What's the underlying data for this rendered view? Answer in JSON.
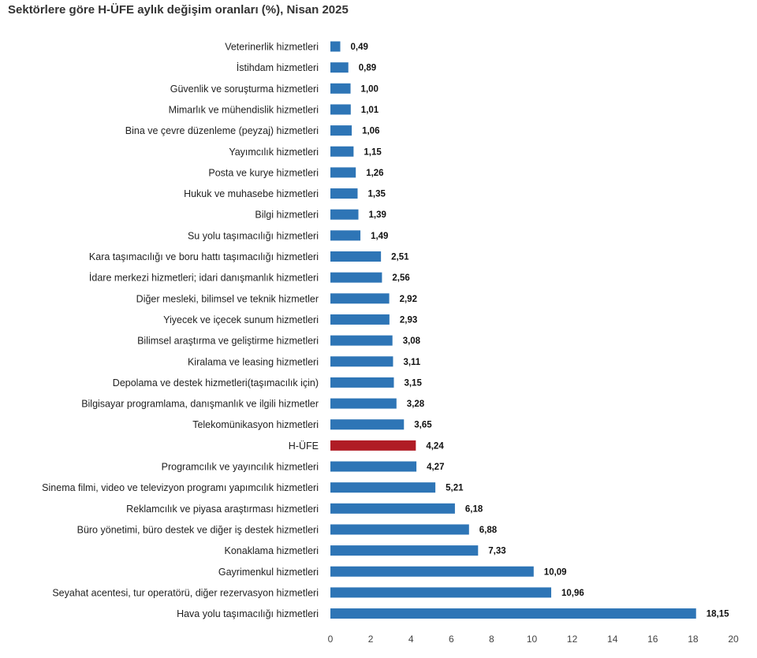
{
  "chart_data": {
    "type": "bar",
    "orientation": "horizontal",
    "title": "Sektörlere göre H-ÜFE aylık değişim oranları (%), Nisan 2025",
    "categories": [
      "Veterinerlik hizmetleri",
      "İstihdam hizmetleri",
      "Güvenlik ve soruşturma hizmetleri",
      "Mimarlık ve mühendislik hizmetleri",
      "Bina ve çevre düzenleme (peyzaj) hizmetleri",
      "Yayımcılık hizmetleri",
      "Posta ve kurye hizmetleri",
      "Hukuk ve muhasebe hizmetleri",
      "Bilgi hizmetleri",
      "Su yolu taşımacılığı hizmetleri",
      "Kara taşımacılığı ve boru hattı taşımacılığı hizmetleri",
      "İdare merkezi hizmetleri; idari danışmanlık hizmetleri",
      "Diğer mesleki, bilimsel ve teknik hizmetler",
      "Yiyecek ve içecek sunum hizmetleri",
      "Bilimsel araştırma ve geliştirme hizmetleri",
      "Kiralama ve leasing hizmetleri",
      "Depolama ve destek hizmetleri(taşımacılık için)",
      "Bilgisayar programlama, danışmanlık ve ilgili hizmetler",
      "Telekomünikasyon hizmetleri",
      "H-ÜFE",
      "Programcılık ve yayıncılık hizmetleri",
      "Sinema filmi, video ve televizyon programı yapımcılık hizmetleri",
      "Reklamcılık ve piyasa araştırması hizmetleri",
      "Büro yönetimi, büro destek ve diğer iş destek hizmetleri",
      "Konaklama hizmetleri",
      "Gayrimenkul hizmetleri",
      "Seyahat acentesi, tur operatörü, diğer rezervasyon hizmetleri",
      "Hava yolu taşımacılığı hizmetleri"
    ],
    "values": [
      0.49,
      0.89,
      1.0,
      1.01,
      1.06,
      1.15,
      1.26,
      1.35,
      1.39,
      1.49,
      2.51,
      2.56,
      2.92,
      2.93,
      3.08,
      3.11,
      3.15,
      3.28,
      3.65,
      4.24,
      4.27,
      5.21,
      6.18,
      6.88,
      7.33,
      10.09,
      10.96,
      18.15
    ],
    "value_labels": [
      "0,49",
      "0,89",
      "1,00",
      "1,01",
      "1,06",
      "1,15",
      "1,26",
      "1,35",
      "1,39",
      "1,49",
      "2,51",
      "2,56",
      "2,92",
      "2,93",
      "3,08",
      "3,11",
      "3,15",
      "3,28",
      "3,65",
      "4,24",
      "4,27",
      "5,21",
      "6,18",
      "6,88",
      "7,33",
      "10,09",
      "10,96",
      "18,15"
    ],
    "highlight_category": "H-ÜFE",
    "xlim": [
      0,
      20
    ],
    "xticks": [
      0,
      2,
      4,
      6,
      8,
      10,
      12,
      14,
      16,
      18,
      20
    ],
    "grid": false,
    "colors": {
      "bar": "#2e75b6",
      "highlight": "#b01c25"
    }
  }
}
